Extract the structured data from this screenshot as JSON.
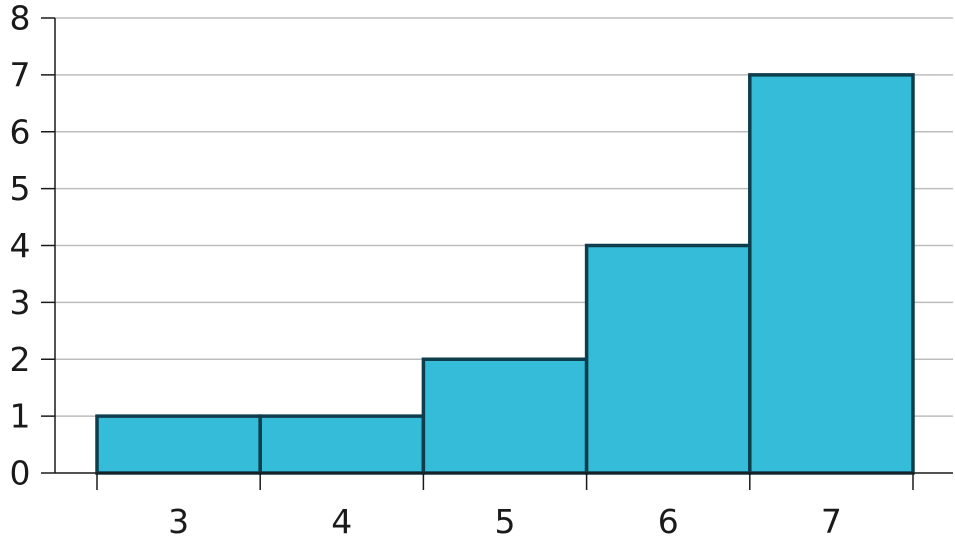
{
  "chart_data": {
    "type": "bar",
    "title": "",
    "xlabel": "",
    "ylabel": "",
    "categories": [
      "3",
      "4",
      "5",
      "6",
      "7"
    ],
    "values": [
      1,
      1,
      2,
      4,
      7
    ],
    "ylim": [
      0,
      8
    ],
    "yticks": [
      "0",
      "1",
      "2",
      "3",
      "4",
      "5",
      "6",
      "7",
      "8"
    ],
    "grid": true,
    "legend": "none",
    "bar_fill": "#35BCD8",
    "bar_stroke": "#0E3D4C",
    "grid_color": "#BDBDBD",
    "axis_color": "#1A1A1A"
  }
}
